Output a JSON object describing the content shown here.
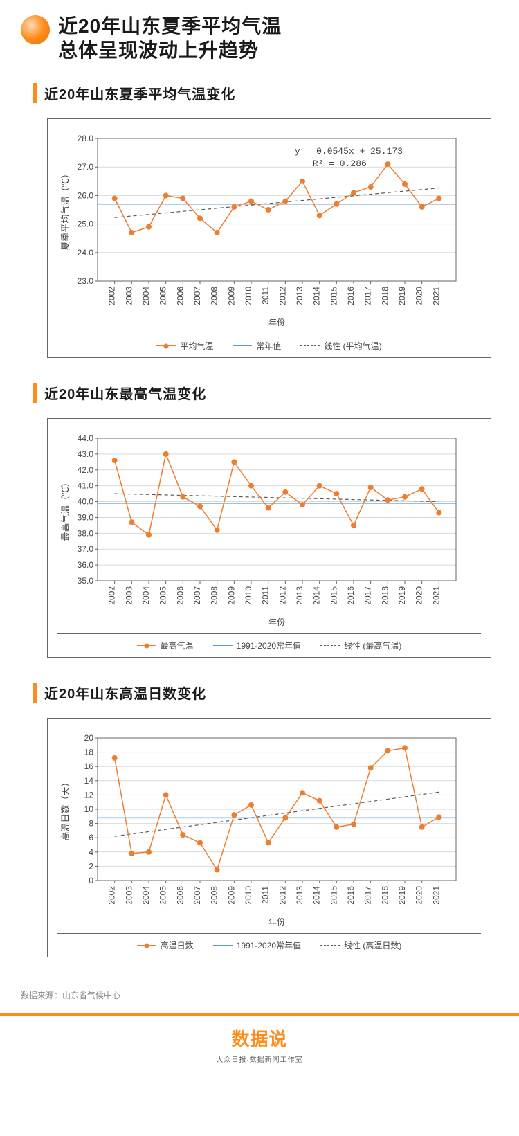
{
  "main_title_l1": "近20年山东夏季平均气温",
  "main_title_l2": "总体呈现波动上升趋势",
  "source_label": "数据来源：山东省气候中心",
  "footer_logo": "数据说",
  "footer_sub": "大众日报·数据新闻工作室",
  "years": [
    "2002",
    "2003",
    "2004",
    "2005",
    "2006",
    "2007",
    "2008",
    "2009",
    "2010",
    "2011",
    "2012",
    "2013",
    "2014",
    "2015",
    "2016",
    "2017",
    "2018",
    "2019",
    "2020",
    "2021"
  ],
  "chart1": {
    "title": "近20年山东夏季平均气温变化",
    "ylabel": "夏季平均气温（℃）",
    "xlabel": "年份",
    "ylim": [
      23.0,
      28.0
    ],
    "ytick_step": 1.0,
    "values": [
      25.9,
      24.7,
      24.9,
      26.0,
      25.9,
      25.2,
      24.7,
      25.6,
      25.8,
      25.5,
      25.8,
      26.5,
      25.3,
      25.7,
      26.1,
      26.3,
      27.1,
      26.4,
      25.6,
      25.9
    ],
    "normal_value": 25.7,
    "trend": {
      "slope": 0.0545,
      "intercept": 25.173
    },
    "annot_l1": "y = 0.0545x + 25.173",
    "annot_l2": "R² = 0.286",
    "legend": [
      "平均气温",
      "常年值",
      "线性 (平均气温)"
    ],
    "series_color": "#ed7d31",
    "normal_color": "#5b9bd5",
    "trend_color": "#595959",
    "grid_color": "#d9d9d9",
    "marker_size": 4,
    "line_width": 1.5
  },
  "chart2": {
    "title": "近20年山东最高气温变化",
    "ylabel": "最高气温（℃）",
    "xlabel": "年份",
    "ylim": [
      35.0,
      44.0
    ],
    "ytick_step": 1.0,
    "values": [
      42.6,
      38.7,
      37.9,
      43.0,
      40.3,
      39.7,
      38.2,
      42.5,
      41.0,
      39.6,
      40.6,
      39.8,
      41.0,
      40.5,
      38.5,
      40.9,
      40.1,
      40.3,
      40.8,
      39.3
    ],
    "normal_value": 39.9,
    "trend": {
      "start": 40.5,
      "end": 40.0
    },
    "legend": [
      "最高气温",
      "1991-2020常年值",
      "线性 (最高气温)"
    ],
    "series_color": "#ed7d31",
    "normal_color": "#5b9bd5",
    "trend_color": "#595959",
    "grid_color": "#d9d9d9",
    "marker_size": 4,
    "line_width": 1.5
  },
  "chart3": {
    "title": "近20年山东高温日数变化",
    "ylabel": "高温日数（天）",
    "xlabel": "年份",
    "ylim": [
      0,
      20
    ],
    "ytick_step": 2,
    "values": [
      17.2,
      3.8,
      4.0,
      12.0,
      6.4,
      5.3,
      1.5,
      9.2,
      10.6,
      5.3,
      8.8,
      12.3,
      11.2,
      7.5,
      7.9,
      15.8,
      18.2,
      18.6,
      7.5,
      8.9
    ],
    "normal_value": 8.8,
    "trend": {
      "start": 6.2,
      "end": 12.4
    },
    "legend": [
      "高温日数",
      "1991-2020常年值",
      "线性 (高温日数)"
    ],
    "series_color": "#ed7d31",
    "normal_color": "#5b9bd5",
    "trend_color": "#595959",
    "grid_color": "#d9d9d9",
    "marker_size": 4,
    "line_width": 1.5
  }
}
